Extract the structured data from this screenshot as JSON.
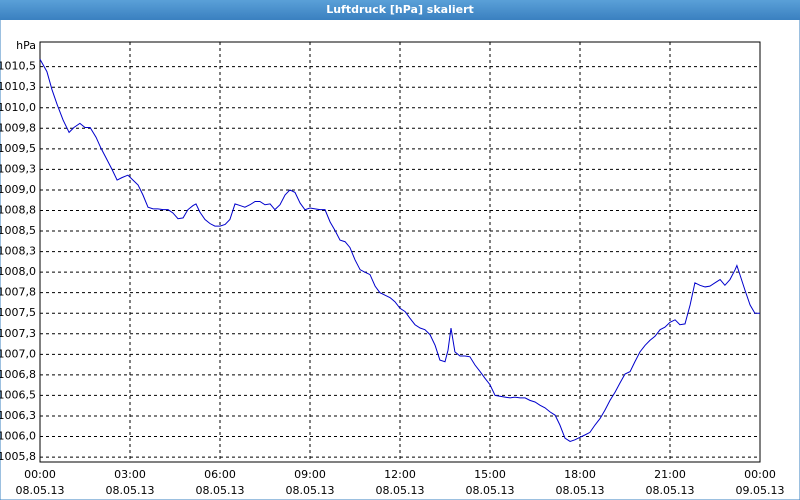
{
  "chart_data": {
    "type": "line",
    "title": "Luftdruck [hPa] skaliert",
    "y_label": "hPa",
    "color": "#0000cc",
    "grid": true,
    "xlim": [
      0,
      24
    ],
    "ylim": [
      1005.69,
      1010.8
    ],
    "xticks": [
      {
        "value": 0,
        "label": "00:00",
        "date": "08.05.13"
      },
      {
        "value": 3,
        "label": "03:00",
        "date": "08.05.13"
      },
      {
        "value": 6,
        "label": "06:00",
        "date": "08.05.13"
      },
      {
        "value": 9,
        "label": "09:00",
        "date": "08.05.13"
      },
      {
        "value": 12,
        "label": "12:00",
        "date": "08.05.13"
      },
      {
        "value": 15,
        "label": "15:00",
        "date": "08.05.13"
      },
      {
        "value": 18,
        "label": "18:00",
        "date": "08.05.13"
      },
      {
        "value": 21,
        "label": "21:00",
        "date": "08.05.13"
      },
      {
        "value": 24,
        "label": "00:00",
        "date": "09.05.13"
      }
    ],
    "yticks": [
      {
        "value": 1010.5,
        "label": "1010,5"
      },
      {
        "value": 1010.25,
        "label": "1010,3"
      },
      {
        "value": 1010.0,
        "label": "1010,0"
      },
      {
        "value": 1009.75,
        "label": "1009,8"
      },
      {
        "value": 1009.5,
        "label": "1009,5"
      },
      {
        "value": 1009.25,
        "label": "1009,3"
      },
      {
        "value": 1009.0,
        "label": "1009,0"
      },
      {
        "value": 1008.75,
        "label": "1008,8"
      },
      {
        "value": 1008.5,
        "label": "1008,5"
      },
      {
        "value": 1008.25,
        "label": "1008,3"
      },
      {
        "value": 1008.0,
        "label": "1008,0"
      },
      {
        "value": 1007.75,
        "label": "1007,8"
      },
      {
        "value": 1007.5,
        "label": "1007,5"
      },
      {
        "value": 1007.25,
        "label": "1007,3"
      },
      {
        "value": 1007.0,
        "label": "1007,0"
      },
      {
        "value": 1006.75,
        "label": "1006,8"
      },
      {
        "value": 1006.5,
        "label": "1006,5"
      },
      {
        "value": 1006.25,
        "label": "1006,3"
      },
      {
        "value": 1006.0,
        "label": "1006,0"
      },
      {
        "value": 1005.75,
        "label": "1005,8"
      }
    ],
    "x": [
      0,
      0.23,
      0.4,
      0.57,
      0.77,
      0.97,
      1.13,
      1.33,
      1.5,
      1.67,
      1.87,
      2.03,
      2.23,
      2.4,
      2.57,
      2.73,
      2.93,
      3.1,
      3.27,
      3.43,
      3.6,
      3.77,
      3.93,
      4.1,
      4.27,
      4.43,
      4.6,
      4.77,
      4.93,
      5.1,
      5.2,
      5.33,
      5.5,
      5.67,
      5.83,
      6,
      6.17,
      6.33,
      6.5,
      6.67,
      6.83,
      7,
      7.17,
      7.33,
      7.5,
      7.67,
      7.83,
      8,
      8.17,
      8.33,
      8.5,
      8.67,
      8.83,
      9,
      9.17,
      9.33,
      9.5,
      9.67,
      9.83,
      10,
      10.17,
      10.33,
      10.5,
      10.67,
      10.83,
      11,
      11.17,
      11.33,
      11.5,
      11.67,
      11.83,
      12,
      12.17,
      12.33,
      12.5,
      12.67,
      12.83,
      13,
      13.17,
      13.33,
      13.5,
      13.6,
      13.7,
      13.83,
      14,
      14.17,
      14.33,
      14.5,
      14.67,
      14.83,
      15,
      15.17,
      15.33,
      15.5,
      15.67,
      15.83,
      16,
      16.17,
      16.33,
      16.5,
      16.67,
      16.83,
      17,
      17.17,
      17.33,
      17.5,
      17.67,
      17.83,
      18,
      18.17,
      18.33,
      18.5,
      18.67,
      18.83,
      19,
      19.17,
      19.33,
      19.5,
      19.67,
      19.83,
      20,
      20.17,
      20.33,
      20.5,
      20.67,
      20.83,
      21,
      21.17,
      21.33,
      21.5,
      21.67,
      21.83,
      22,
      22.17,
      22.33,
      22.5,
      22.67,
      22.83,
      23,
      23.17,
      23.23,
      23.33,
      23.5,
      23.67,
      23.83,
      24
    ],
    "values": [
      1010.59,
      1010.44,
      1010.22,
      1010.04,
      1009.85,
      1009.7,
      1009.76,
      1009.81,
      1009.76,
      1009.76,
      1009.64,
      1009.51,
      1009.37,
      1009.25,
      1009.12,
      1009.15,
      1009.18,
      1009.12,
      1009.06,
      1008.94,
      1008.79,
      1008.77,
      1008.77,
      1008.76,
      1008.76,
      1008.72,
      1008.65,
      1008.66,
      1008.76,
      1008.81,
      1008.83,
      1008.73,
      1008.64,
      1008.59,
      1008.56,
      1008.56,
      1008.58,
      1008.64,
      1008.83,
      1008.81,
      1008.79,
      1008.82,
      1008.86,
      1008.86,
      1008.82,
      1008.83,
      1008.76,
      1008.82,
      1008.94,
      1009.0,
      1008.97,
      1008.84,
      1008.76,
      1008.78,
      1008.77,
      1008.76,
      1008.76,
      1008.61,
      1008.51,
      1008.39,
      1008.37,
      1008.3,
      1008.15,
      1008.03,
      1008.0,
      1007.97,
      1007.83,
      1007.75,
      1007.72,
      1007.69,
      1007.64,
      1007.56,
      1007.52,
      1007.44,
      1007.36,
      1007.32,
      1007.3,
      1007.24,
      1007.11,
      1006.93,
      1006.91,
      1007.05,
      1007.32,
      1007.03,
      1006.98,
      1006.98,
      1006.97,
      1006.87,
      1006.79,
      1006.71,
      1006.63,
      1006.5,
      1006.49,
      1006.48,
      1006.47,
      1006.48,
      1006.47,
      1006.47,
      1006.44,
      1006.42,
      1006.38,
      1006.35,
      1006.3,
      1006.26,
      1006.14,
      1005.98,
      1005.94,
      1005.96,
      1005.99,
      1006.02,
      1006.05,
      1006.14,
      1006.22,
      1006.32,
      1006.44,
      1006.54,
      1006.65,
      1006.76,
      1006.79,
      1006.91,
      1007.03,
      1007.11,
      1007.17,
      1007.22,
      1007.3,
      1007.33,
      1007.39,
      1007.42,
      1007.36,
      1007.37,
      1007.6,
      1007.87,
      1007.84,
      1007.82,
      1007.83,
      1007.87,
      1007.91,
      1007.84,
      1007.91,
      1008.03,
      1008.08,
      1007.97,
      1007.78,
      1007.6,
      1007.5,
      1007.5
    ]
  }
}
